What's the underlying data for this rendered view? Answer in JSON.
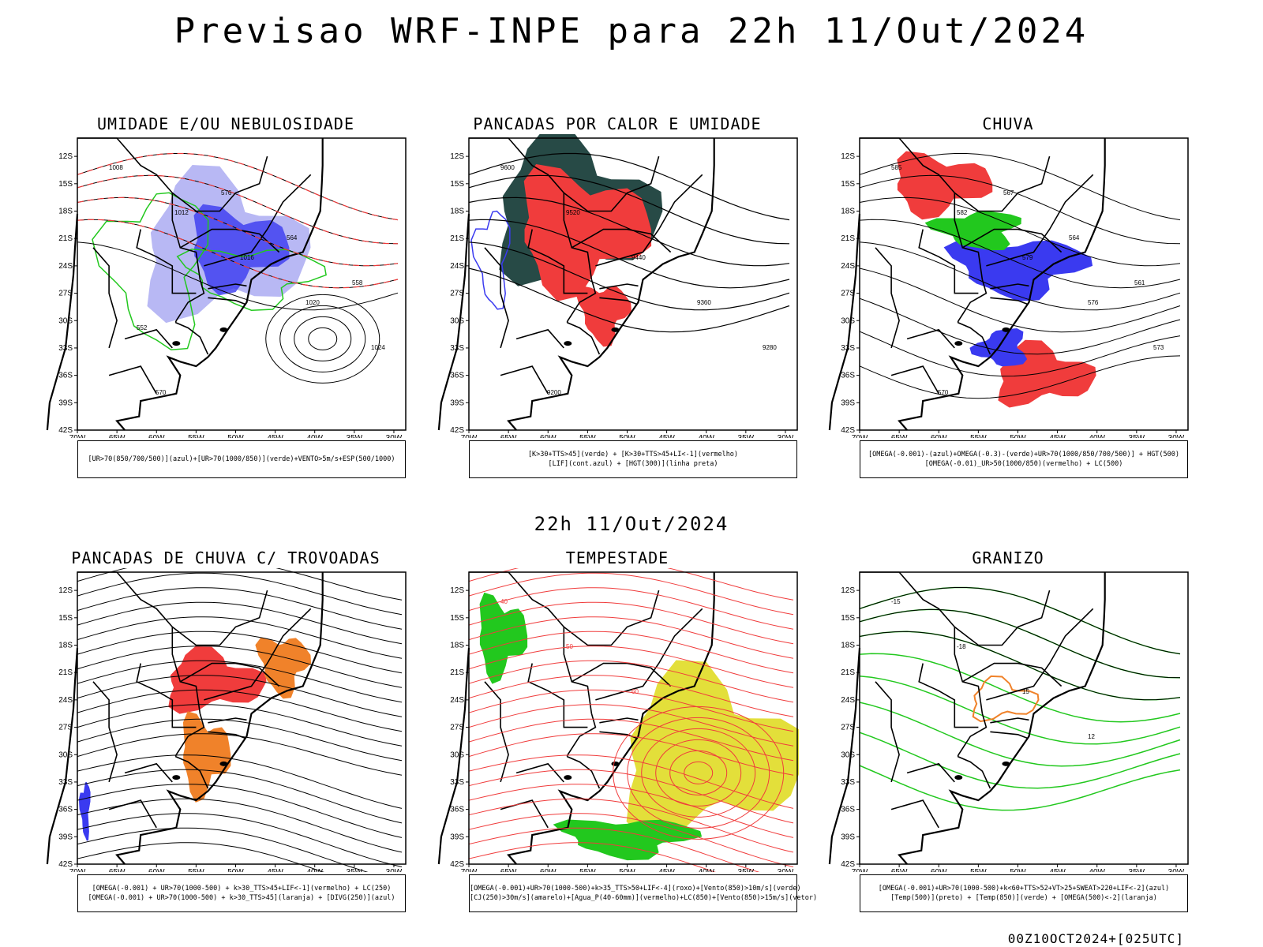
{
  "title": "Previsao WRF-INPE  para 22h 11/Out/2024",
  "subtitle": "22h 11/Out/2024",
  "footer": "00Z10OCT2024+[025UTC]",
  "axes": {
    "lat_labels": [
      "12S",
      "15S",
      "18S",
      "21S",
      "24S",
      "27S",
      "30S",
      "33S",
      "36S",
      "39S",
      "42S"
    ],
    "lon_labels": [
      "70W",
      "65W",
      "60W",
      "55W",
      "50W",
      "45W",
      "40W",
      "35W",
      "30W"
    ]
  },
  "colors": {
    "blue": "#3a3af0",
    "light_blue": "#b8b8f4",
    "green": "#22c81e",
    "red": "#f03c3c",
    "dark_teal": "#274a46",
    "yellow": "#e3df3a",
    "orange": "#f0822a"
  },
  "panels": [
    {
      "title": "UMIDADE E/OU NEBULOSIDADE",
      "legend": [
        "[UR>70(850/700/500)](azul)+[UR>70(1000/850)](verde)+VENTO>5m/s+ESP(500/1000)"
      ],
      "contour_labels": [
        "1008",
        "1012",
        "1016",
        "1020",
        "1024",
        "570",
        "576",
        "564",
        "558",
        "552"
      ]
    },
    {
      "title": "PANCADAS POR CALOR E UMIDADE",
      "legend": [
        "[K>30+TTS>45](verde) + [K>30+TTS>45+LI<-1](vermelho)",
        "[LIF](cont.azul) + [HGT(300)](linha preta)"
      ],
      "contour_labels": [
        "9600",
        "9520",
        "9440",
        "9360",
        "9280",
        "9200"
      ]
    },
    {
      "title": "CHUVA",
      "legend": [
        "[OMEGA(-0.001)-(azul)+OMEGA(-0.3)-(verde)+UR>70(1000/850/700/500)] + HGT(500)",
        "[OMEGA(-0.01)_UR>50(1000/850)(vermelho) + LC(500)"
      ],
      "contour_labels": [
        "585",
        "582",
        "579",
        "576",
        "573",
        "570",
        "567",
        "564",
        "561"
      ]
    },
    {
      "title": "PANCADAS DE CHUVA C/ TROVOADAS",
      "legend": [
        "[OMEGA(-0.001) + UR>70(1000-500) + k>30_TTS>45+LIF<-1](vermelho) + LC(250)",
        "[OMEGA(-0.001) + UR>70(1000-500) + k>30_TTS>45](laranja) + [DIVG(250)](azul)"
      ],
      "contour_labels": []
    },
    {
      "title": "TEMPESTADE",
      "legend": [
        "[OMEGA(-0.001)+UR>70(1000-500)+k>35_TTS>50+LIF<-4](roxo)+[Vento(850)>10m/s](verde)",
        "[CJ(250)>30m/s](amarelo)+[Agua_P(40-60mm)](vermelho)+LC(850)+[Vento(850)>15m/s](vetor)"
      ],
      "contour_labels": [
        "40",
        "50",
        "60"
      ]
    },
    {
      "title": "GRANIZO",
      "legend": [
        "[OMEGA(-0.001)+UR>70(1000-500)+k<60+TTS>52+VT>25+SWEAT>220+LIF<-2](azul)",
        "[Temp(500)](preto) + [Temp(850)](verde) + [OMEGA(500)<-2](laranja)"
      ],
      "contour_labels": [
        "-15",
        "-18",
        "15",
        "12"
      ]
    }
  ]
}
